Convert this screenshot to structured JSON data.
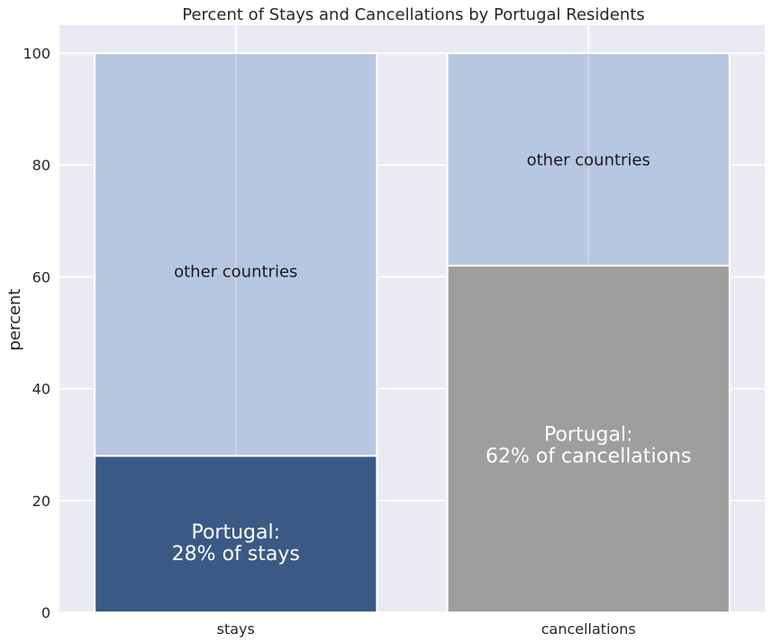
{
  "chart_data": {
    "type": "bar",
    "stacked": true,
    "title": "Percent of Stays and Cancellations by Portugal Residents",
    "xlabel": "",
    "ylabel": "percent",
    "ylim": [
      0,
      105
    ],
    "yticks": [
      0,
      20,
      40,
      60,
      80,
      100
    ],
    "grid": true,
    "categories": [
      "stays",
      "cancellations"
    ],
    "series": [
      {
        "values": [
          28,
          62
        ],
        "colors": [
          "#3a5a85",
          "#9e9e9e"
        ],
        "labels": [
          "Portugal:\n28% of stays",
          "Portugal:\n62% of cancellations"
        ],
        "label_at": [
          12.5,
          30
        ],
        "label_color": "#ffffff",
        "label_size": "large"
      },
      {
        "values": [
          72,
          38
        ],
        "colors": [
          "#b8c7e1",
          "#b8c7e1"
        ],
        "labels": [
          "other countries",
          "other countries"
        ],
        "label_at": [
          61,
          81
        ],
        "label_color": "#1a1a1a",
        "label_size": "normal"
      }
    ],
    "background_color": "#eaeaf2",
    "grid_color": "#ffffff"
  }
}
